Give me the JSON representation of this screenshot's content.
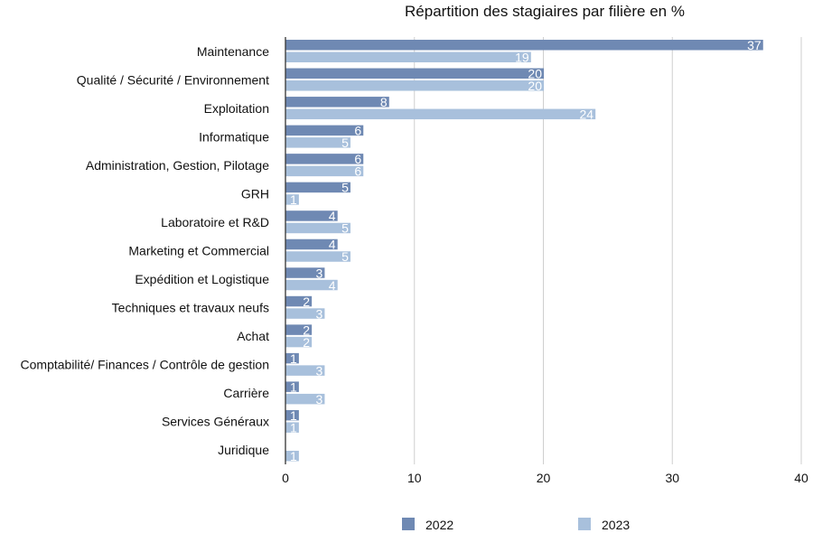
{
  "chart_data": {
    "type": "bar",
    "orientation": "horizontal",
    "title": "Répartition des stagiaires par filière en %",
    "xlabel": "",
    "ylabel": "",
    "xlim": [
      0,
      40
    ],
    "ticks": [
      "0",
      "10",
      "20",
      "30",
      "40"
    ],
    "grid": true,
    "legend_position": "bottom",
    "categories": [
      "Maintenance",
      "Qualité / Sécurité / Environnement",
      "Exploitation",
      "Informatique",
      "Administration, Gestion, Pilotage",
      "GRH",
      "Laboratoire et R&D",
      "Marketing et Commercial",
      "Expédition et Logistique",
      "Techniques et travaux neufs",
      "Achat",
      "Comptabilité/ Finances / Contrôle de gestion",
      "Carrière",
      "Services Généraux",
      "Juridique"
    ],
    "series": [
      {
        "name": "2022",
        "color": "#6f89b3",
        "values": [
          37,
          20,
          8,
          6,
          6,
          5,
          4,
          4,
          3,
          2,
          2,
          1,
          1,
          1,
          null
        ]
      },
      {
        "name": "2023",
        "color": "#a8c0dc",
        "values": [
          19,
          20,
          24,
          5,
          6,
          1,
          5,
          5,
          4,
          3,
          2,
          3,
          3,
          1,
          1
        ]
      }
    ]
  }
}
